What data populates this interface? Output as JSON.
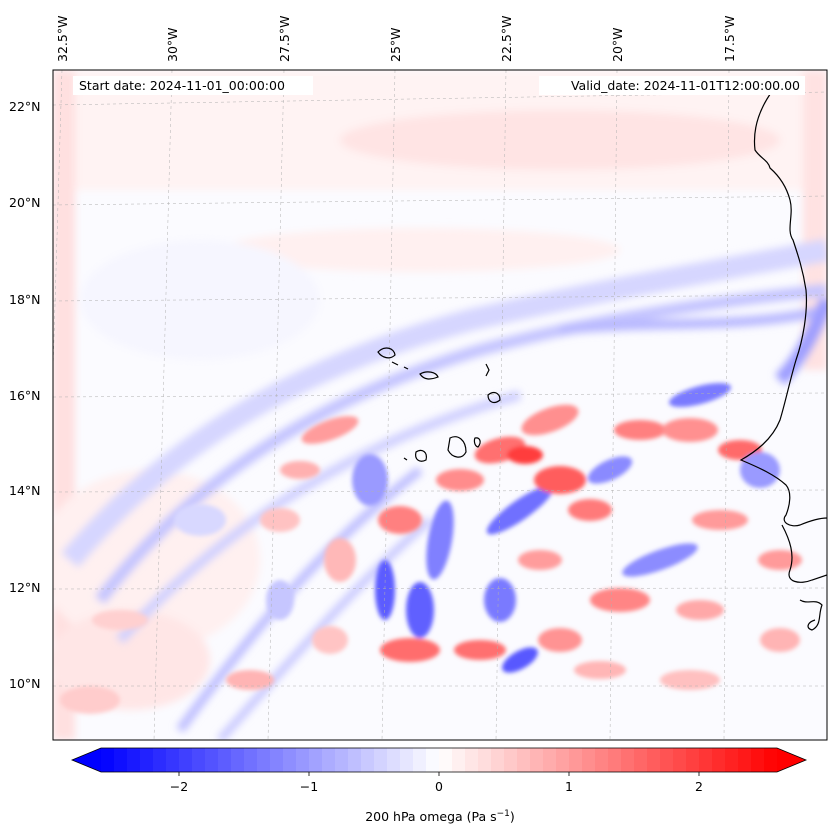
{
  "header": {
    "start_label": "Start date: 2024-11-01_00:00:00",
    "valid_label": "Valid_date: 2024-11-01T12:00:00.00"
  },
  "map": {
    "lon_ticks": [
      "32.5°W",
      "30°W",
      "27.5°W",
      "25°W",
      "22.5°W",
      "20°W",
      "17.5°W"
    ],
    "lat_ticks": [
      "22°N",
      "20°N",
      "18°N",
      "16°N",
      "14°N",
      "12°N",
      "10°N"
    ],
    "colors": {
      "negative": "#0000ff",
      "zero": "#ffffff",
      "positive": "#ff0000",
      "coast": "#000000",
      "grid": "#b0b0b0"
    }
  },
  "colorbar": {
    "ticks": [
      "−2",
      "−1",
      "0",
      "1",
      "2"
    ],
    "tick_values": [
      -2,
      -1,
      0,
      1,
      2
    ],
    "range": [
      -2.6,
      2.6
    ],
    "label_main": "200 hPa omega (Pa s",
    "label_sup": "−1",
    "label_end": ")"
  }
}
